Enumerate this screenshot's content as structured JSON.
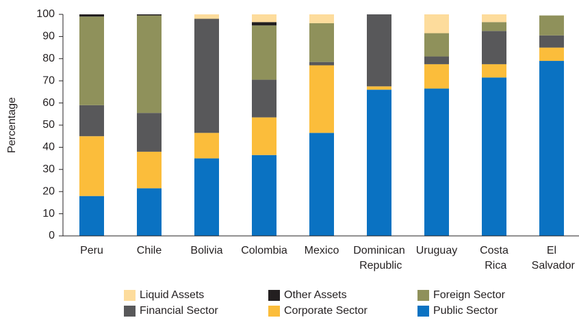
{
  "chart_data": {
    "type": "stacked_bar",
    "y_label": "Percentage",
    "categories": [
      "Peru",
      "Chile",
      "Bolivia",
      "Colombia",
      "Mexico",
      "Dominican Republic",
      "Uruguay",
      "Costa Rica",
      "El Salvador"
    ],
    "series": [
      {
        "name": "Public Sector",
        "color": "#0a72c2",
        "values": [
          18,
          21.5,
          35,
          36.5,
          46.5,
          66,
          66.5,
          71.5,
          79
        ]
      },
      {
        "name": "Corporate Sector",
        "color": "#fbbd3b",
        "values": [
          27,
          16.5,
          11.5,
          17,
          30.5,
          1.5,
          11,
          6,
          6
        ]
      },
      {
        "name": "Financial Sector",
        "color": "#58585a",
        "values": [
          14,
          17.5,
          51.5,
          17,
          1.5,
          32.5,
          3.5,
          15,
          5.5
        ]
      },
      {
        "name": "Foreign Sector",
        "color": "#8f915b",
        "values": [
          40,
          44,
          0,
          24.5,
          17.5,
          0,
          10.5,
          4,
          9
        ]
      },
      {
        "name": "Other Assets",
        "color": "#231f20",
        "values": [
          1,
          0.5,
          0,
          1.5,
          0,
          0,
          0,
          0,
          0
        ]
      },
      {
        "name": "Liquid Assets",
        "color": "#fddc9c",
        "values": [
          0,
          0,
          2,
          3.5,
          4,
          0,
          8.5,
          3.5,
          0
        ]
      }
    ],
    "ylim": [
      0,
      100
    ],
    "yticks": [
      0,
      10,
      20,
      30,
      40,
      50,
      60,
      70,
      80,
      90,
      100
    ],
    "grid": false
  }
}
